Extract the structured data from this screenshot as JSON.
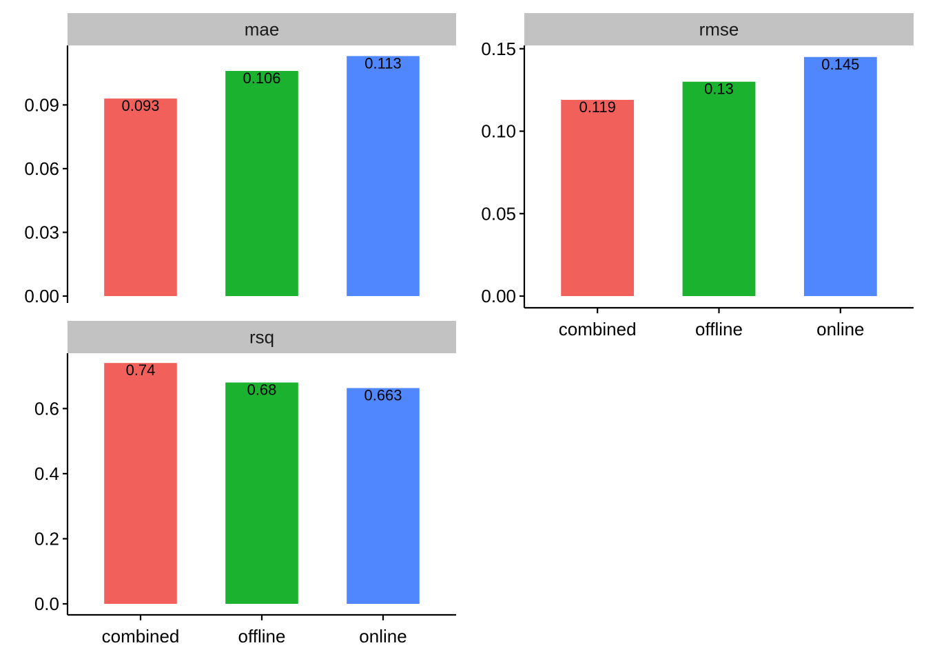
{
  "colors": {
    "combined": "#F2605B",
    "offline": "#1AB22F",
    "online": "#5087FF",
    "strip_background": "#C2C2C2",
    "axis": "#000000"
  },
  "chart_data": [
    {
      "type": "bar",
      "facet": "mae",
      "categories": [
        "combined",
        "offline",
        "online"
      ],
      "values": [
        0.093,
        0.106,
        0.113
      ],
      "data_labels": [
        "0.093",
        "0.106",
        "0.113"
      ],
      "ylim": [
        0,
        0.118
      ],
      "yticks": [
        0.0,
        0.03,
        0.06,
        0.09
      ],
      "ytick_labels": [
        "0.00",
        "0.03",
        "0.06",
        "0.09"
      ],
      "show_x_axis": false,
      "xtick_labels": []
    },
    {
      "type": "bar",
      "facet": "rmse",
      "categories": [
        "combined",
        "offline",
        "online"
      ],
      "values": [
        0.119,
        0.13,
        0.145
      ],
      "data_labels": [
        "0.119",
        "0.13",
        "0.145"
      ],
      "ylim": [
        0,
        0.152
      ],
      "yticks": [
        0.0,
        0.05,
        0.1,
        0.15
      ],
      "ytick_labels": [
        "0.00",
        "0.05",
        "0.10",
        "0.15"
      ],
      "show_x_axis": true,
      "xtick_labels": [
        "combined",
        "offline",
        "online"
      ]
    },
    {
      "type": "bar",
      "facet": "rsq",
      "categories": [
        "combined",
        "offline",
        "online"
      ],
      "values": [
        0.74,
        0.68,
        0.663
      ],
      "data_labels": [
        "0.74",
        "0.68",
        "0.663"
      ],
      "ylim": [
        0,
        0.77
      ],
      "yticks": [
        0.0,
        0.2,
        0.4,
        0.6
      ],
      "ytick_labels": [
        "0.0",
        "0.2",
        "0.4",
        "0.6"
      ],
      "show_x_axis": true,
      "xtick_labels": [
        "combined",
        "offline",
        "online"
      ]
    }
  ]
}
